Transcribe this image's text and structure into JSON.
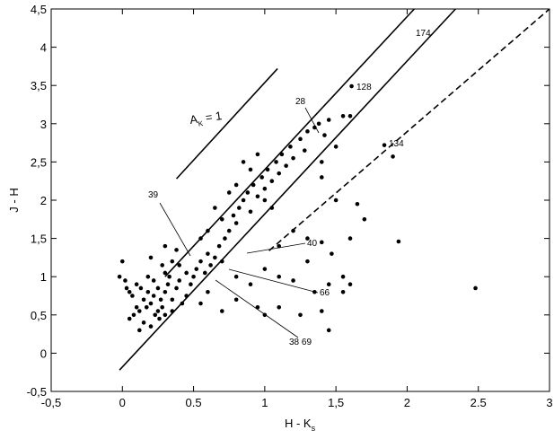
{
  "chart_data": {
    "type": "scatter",
    "x_label": {
      "text": "H - K",
      "sub": "s"
    },
    "y_label": "J - H",
    "xlim": [
      -0.5,
      3
    ],
    "ylim": [
      -0.5,
      4.5
    ],
    "xticks": [
      {
        "value": -0.5,
        "label": "-0,5"
      },
      0,
      0.5,
      1,
      {
        "value": 1.5,
        "label": "1,5"
      },
      2,
      2.5,
      3
    ],
    "yticks": [
      {
        "value": -0.5,
        "label": "-0,5"
      },
      0,
      {
        "value": 0.5,
        "label": "0,5"
      },
      1,
      {
        "value": 1.5,
        "label": "1,5"
      },
      2,
      {
        "value": 2.5,
        "label": "2,5"
      },
      3,
      {
        "value": 3.5,
        "label": "3,5"
      },
      4,
      {
        "value": 4.5,
        "label": "4,5"
      }
    ],
    "color": "#000000",
    "x": [
      0.15,
      0.18,
      0.2,
      0.22,
      0.25,
      0.27,
      0.3,
      0.32,
      0.12,
      0.1,
      0.08,
      0.05,
      0.15,
      0.2,
      0.12,
      0.25,
      0.28,
      0.35,
      0.38,
      0.4,
      0.33,
      0.3,
      0.22,
      0.18,
      0.1,
      0.05,
      0.02,
      -0.02,
      0,
      0.03,
      0.07,
      0.13,
      0.17,
      0.23,
      0.26,
      0.3,
      0.35,
      0.42,
      0.45,
      0.48,
      0.5,
      0.45,
      0.4,
      0.35,
      0.28,
      0.2,
      0.38,
      0.3,
      0.52,
      0.55,
      0.58,
      0.6,
      0.62,
      0.65,
      0.68,
      0.7,
      0.72,
      0.75,
      0.7,
      0.78,
      0.8,
      0.82,
      0.85,
      0.88,
      0.9,
      0.92,
      0.95,
      0.98,
      1.0,
      1.02,
      1.05,
      1.08,
      1.1,
      1.12,
      1.15,
      1.18,
      1.2,
      1.25,
      1.28,
      1.3,
      1.35,
      1.38,
      1.42,
      1.45,
      1.55,
      1.6,
      1.5,
      1.4,
      0.85,
      0.9,
      0.75,
      0.65,
      0.6,
      0.55,
      0.8,
      0.95,
      1.0,
      1.05,
      0.8,
      0.9,
      1.0,
      1.1,
      1.2,
      1.3,
      1.35,
      1.45,
      1.55,
      1.6,
      1.55,
      1.47,
      1.4,
      1.3,
      1.2,
      1.1,
      0.95,
      0.8,
      0.7,
      1.0,
      1.1,
      1.25,
      1.45,
      1.4,
      0.6,
      0.55,
      1.65,
      1.7,
      1.5,
      1.4,
      1.6,
      1.61,
      1.84,
      1.9,
      1.94,
      2.48
    ],
    "values": [
      0.7,
      0.8,
      0.65,
      0.75,
      0.85,
      0.7,
      0.8,
      0.9,
      0.55,
      0.6,
      0.5,
      0.45,
      0.4,
      0.35,
      0.3,
      0.55,
      0.6,
      0.7,
      0.85,
      0.95,
      1.0,
      1.05,
      0.95,
      1.0,
      0.9,
      0.8,
      0.95,
      1.0,
      1.2,
      0.85,
      0.75,
      0.85,
      0.6,
      0.5,
      0.45,
      0.5,
      0.55,
      0.65,
      0.75,
      0.9,
      1.0,
      1.05,
      1.15,
      1.2,
      1.15,
      1.25,
      1.35,
      1.4,
      1.1,
      1.2,
      1.05,
      1.3,
      1.15,
      1.25,
      1.4,
      1.2,
      1.5,
      1.6,
      1.75,
      1.8,
      1.7,
      1.9,
      2.0,
      2.1,
      1.85,
      2.2,
      2.05,
      2.3,
      2.15,
      2.4,
      2.25,
      2.5,
      2.35,
      2.6,
      2.45,
      2.7,
      2.55,
      2.8,
      2.65,
      2.9,
      2.95,
      3.0,
      2.85,
      3.05,
      3.1,
      3.1,
      2.7,
      2.5,
      2.5,
      2.4,
      2.1,
      1.9,
      1.6,
      1.5,
      2.2,
      2.6,
      2.0,
      1.9,
      1.0,
      0.9,
      1.1,
      1.0,
      0.95,
      1.2,
      0.8,
      0.9,
      0.8,
      0.9,
      1.0,
      1.3,
      1.45,
      1.5,
      1.6,
      1.4,
      0.6,
      0.7,
      0.55,
      0.5,
      0.6,
      0.5,
      0.3,
      0.55,
      0.8,
      0.65,
      1.95,
      1.75,
      2.0,
      2.3,
      1.5,
      3.49,
      2.72,
      2.57,
      1.46,
      0.85
    ],
    "lines": [
      {
        "style": "solid",
        "x": [
          -0.02,
          2.34
        ],
        "values": [
          -0.22,
          4.5
        ]
      },
      {
        "style": "solid",
        "x": [
          0.3,
          2.05
        ],
        "values": [
          1.0,
          4.5
        ]
      },
      {
        "style": "dashed",
        "x": [
          1.03,
          3
        ],
        "values": [
          1.34,
          4.5
        ]
      },
      {
        "style": "solid",
        "x": [
          0.38,
          1.09
        ],
        "values": [
          2.28,
          3.72
        ]
      }
    ],
    "extinction_label": {
      "text": "A",
      "sub": "K",
      "rest": " = 1"
    },
    "annotations": [
      "174",
      "128",
      "28",
      "134",
      "39",
      "40",
      "66",
      "38  69"
    ]
  }
}
